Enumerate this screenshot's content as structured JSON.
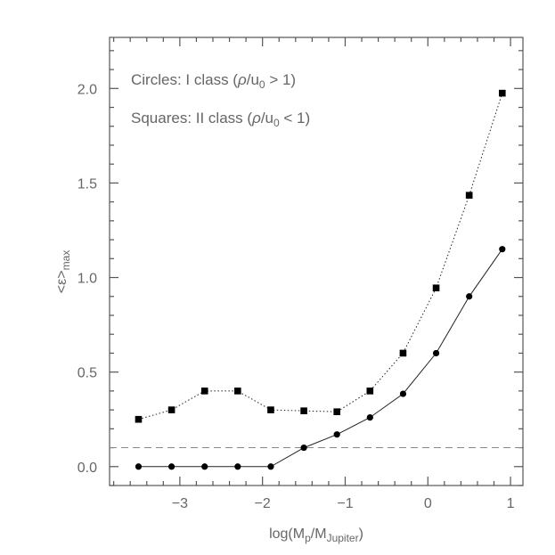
{
  "chart_data": {
    "type": "line",
    "xlabel_main": "log(M",
    "xlabel_sub1": "p",
    "xlabel_mid": "/M",
    "xlabel_sub2": "Jupiter",
    "xlabel_end": ")",
    "ylabel_main": "<ε>",
    "ylabel_sub": "max",
    "xlim": [
      -3.85,
      1.15
    ],
    "ylim": [
      -0.1,
      2.27
    ],
    "xticks": [
      -3,
      -2,
      -1,
      0,
      1
    ],
    "xtick_labels": [
      "−3",
      "−2",
      "−1",
      "0",
      "1"
    ],
    "yticks": [
      0.0,
      0.5,
      1.0,
      1.5,
      2.0
    ],
    "ytick_labels": [
      "0.0",
      "0.5",
      "1.0",
      "1.5",
      "2.0"
    ],
    "annotations": [
      {
        "prefix": "Circles: I  class  (",
        "rho": "ρ",
        "mid": "/u",
        "sub": "0",
        "suffix": " > 1)"
      },
      {
        "prefix": "Squares: II  class  (",
        "rho": "ρ",
        "mid": "/u",
        "sub": "0",
        "suffix": " < 1)"
      }
    ],
    "reference_line": 0.1,
    "series": [
      {
        "marker": "circle",
        "line": "solid",
        "x": [
          -3.5,
          -3.1,
          -2.7,
          -2.3,
          -1.9,
          -1.5,
          -1.1,
          -0.7,
          -0.3,
          0.1,
          0.5,
          0.9
        ],
        "values": [
          0.0,
          0.0,
          0.0,
          0.0,
          0.0,
          0.1,
          0.17,
          0.26,
          0.385,
          0.6,
          0.9,
          1.15
        ]
      },
      {
        "marker": "square",
        "line": "dotted",
        "x": [
          -3.5,
          -3.1,
          -2.7,
          -2.3,
          -1.9,
          -1.5,
          -1.1,
          -0.7,
          -0.3,
          0.1,
          0.5,
          0.9
        ],
        "values": [
          0.25,
          0.3,
          0.4,
          0.4,
          0.3,
          0.295,
          0.29,
          0.4,
          0.6,
          0.945,
          1.435,
          1.975
        ]
      }
    ]
  }
}
